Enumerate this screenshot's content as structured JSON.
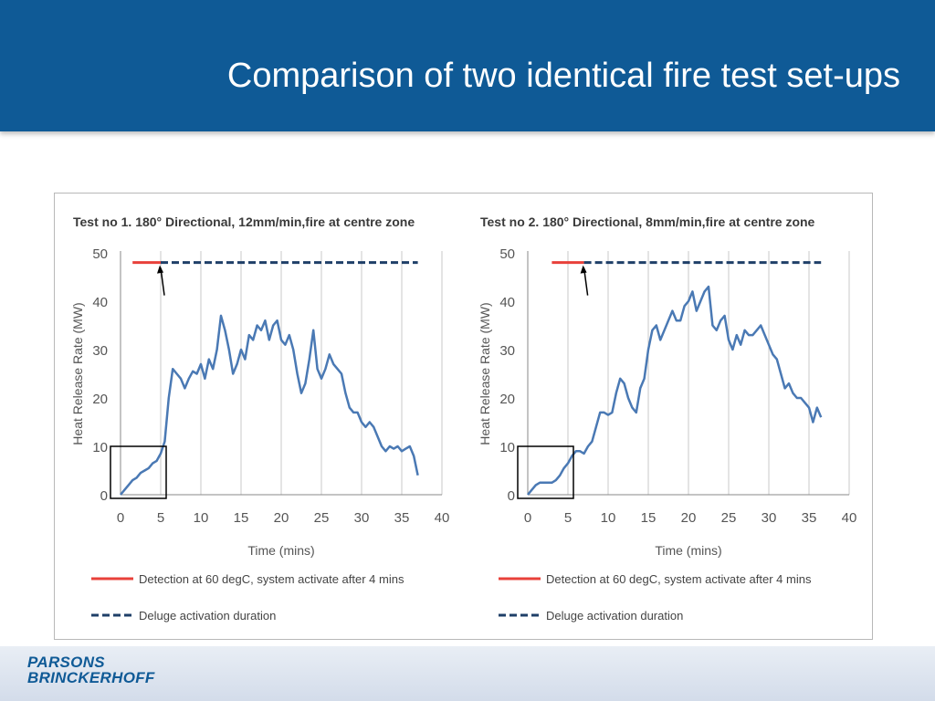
{
  "slide": {
    "title": "Comparison of two identical fire test set-ups",
    "logo_line1": "PARSONS",
    "logo_line2": "BRINCKERHOFF",
    "header_color": "#0f5a96"
  },
  "chart_data": [
    {
      "type": "line",
      "title": "Test no 1. 180° Directional, 12mm/min,fire at centre zone",
      "xlabel": "Time (mins)",
      "ylabel": "Heat Release Rate (MW)",
      "xlim": [
        0,
        40
      ],
      "ylim": [
        0,
        50
      ],
      "xticks": [
        0,
        5,
        10,
        15,
        20,
        25,
        30,
        35,
        40
      ],
      "yticks": [
        0,
        10,
        20,
        30,
        40,
        50
      ],
      "grid": "vertical",
      "legend_position": "bottom",
      "series": [
        {
          "name": "Detection at 60 degC, system activate after 4 mins",
          "style": "solid",
          "color": "#e8403a",
          "x": [
            1.5,
            5
          ],
          "y": [
            48,
            48
          ]
        },
        {
          "name": "Deluge activation duration",
          "style": "dashed",
          "color": "#1f3f68",
          "x": [
            5,
            37
          ],
          "y": [
            48,
            48
          ]
        },
        {
          "name": "",
          "style": "solid",
          "color": "#4a79b4",
          "x": [
            0,
            0.5,
            1,
            1.5,
            2,
            2.5,
            3,
            3.5,
            4,
            4.5,
            5,
            5.5,
            6,
            6.5,
            7,
            7.5,
            8,
            8.5,
            9,
            9.5,
            10,
            10.5,
            11,
            11.5,
            12,
            12.5,
            13,
            13.5,
            14,
            14.5,
            15,
            15.5,
            16,
            16.5,
            17,
            17.5,
            18,
            18.5,
            19,
            19.5,
            20,
            20.5,
            21,
            21.5,
            22,
            22.5,
            23,
            23.5,
            24,
            24.5,
            25,
            25.5,
            26,
            26.5,
            27,
            27.5,
            28,
            28.5,
            29,
            29.5,
            30,
            30.5,
            31,
            31.5,
            32,
            32.5,
            33,
            33.5,
            34,
            34.5,
            35,
            35.5,
            36,
            36.5,
            37
          ],
          "y": [
            0,
            1,
            2,
            3,
            3.5,
            4.5,
            5,
            5.5,
            6.5,
            7,
            8.5,
            11,
            20,
            26,
            25,
            24,
            22,
            24,
            25.5,
            25,
            27,
            24,
            28,
            26,
            30,
            37,
            34,
            30,
            25,
            27,
            30,
            28,
            33,
            32,
            35,
            34,
            36,
            32,
            35,
            36,
            32,
            31,
            33,
            30,
            25,
            21,
            23,
            28,
            34,
            26,
            24,
            26,
            29,
            27,
            26,
            25,
            21,
            18,
            17,
            17,
            15,
            14,
            15,
            14,
            12,
            10,
            9,
            10,
            9.5,
            10,
            9,
            9.5,
            10,
            8,
            4
          ]
        }
      ]
    },
    {
      "type": "line",
      "title": "Test no 2. 180° Directional, 8mm/min,fire at centre zone",
      "xlabel": "Time (mins)",
      "ylabel": "Heat Release Rate (MW)",
      "xlim": [
        0,
        40
      ],
      "ylim": [
        0,
        50
      ],
      "xticks": [
        0,
        5,
        10,
        15,
        20,
        25,
        30,
        35,
        40
      ],
      "yticks": [
        0,
        10,
        20,
        30,
        40,
        50
      ],
      "grid": "vertical",
      "legend_position": "bottom",
      "series": [
        {
          "name": "Detection at 60 degC, system activate after 4 mins",
          "style": "solid",
          "color": "#e8403a",
          "x": [
            3,
            7
          ],
          "y": [
            48,
            48
          ]
        },
        {
          "name": "Deluge activation duration",
          "style": "dashed",
          "color": "#1f3f68",
          "x": [
            7,
            36.5
          ],
          "y": [
            48,
            48
          ]
        },
        {
          "name": "",
          "style": "solid",
          "color": "#4a79b4",
          "x": [
            0,
            0.5,
            1,
            1.5,
            2,
            2.5,
            3,
            3.5,
            4,
            4.5,
            5,
            5.5,
            6,
            6.5,
            7,
            7.5,
            8,
            8.5,
            9,
            9.5,
            10,
            10.5,
            11,
            11.5,
            12,
            12.5,
            13,
            13.5,
            14,
            14.5,
            15,
            15.5,
            16,
            16.5,
            17,
            17.5,
            18,
            18.5,
            19,
            19.5,
            20,
            20.5,
            21,
            21.5,
            22,
            22.5,
            23,
            23.5,
            24,
            24.5,
            25,
            25.5,
            26,
            26.5,
            27,
            27.5,
            28,
            28.5,
            29,
            29.5,
            30,
            30.5,
            31,
            31.5,
            32,
            32.5,
            33,
            33.5,
            34,
            34.5,
            35,
            35.5,
            36,
            36.5
          ],
          "y": [
            0,
            1,
            2,
            2.5,
            2.5,
            2.5,
            2.5,
            3,
            4,
            5.5,
            6.5,
            8,
            9,
            9,
            8.5,
            10,
            11,
            14,
            17,
            17,
            16.5,
            17,
            21,
            24,
            23,
            20,
            18,
            17,
            22,
            24,
            30,
            34,
            35,
            32,
            34,
            36,
            38,
            36,
            36,
            39,
            40,
            42,
            38,
            40,
            42,
            43,
            35,
            34,
            36,
            37,
            32,
            30,
            33,
            31,
            34,
            33,
            33,
            34,
            35,
            33,
            31,
            29,
            28,
            25,
            22,
            23,
            21,
            20,
            20,
            19,
            18,
            15,
            18,
            16
          ]
        }
      ]
    }
  ]
}
